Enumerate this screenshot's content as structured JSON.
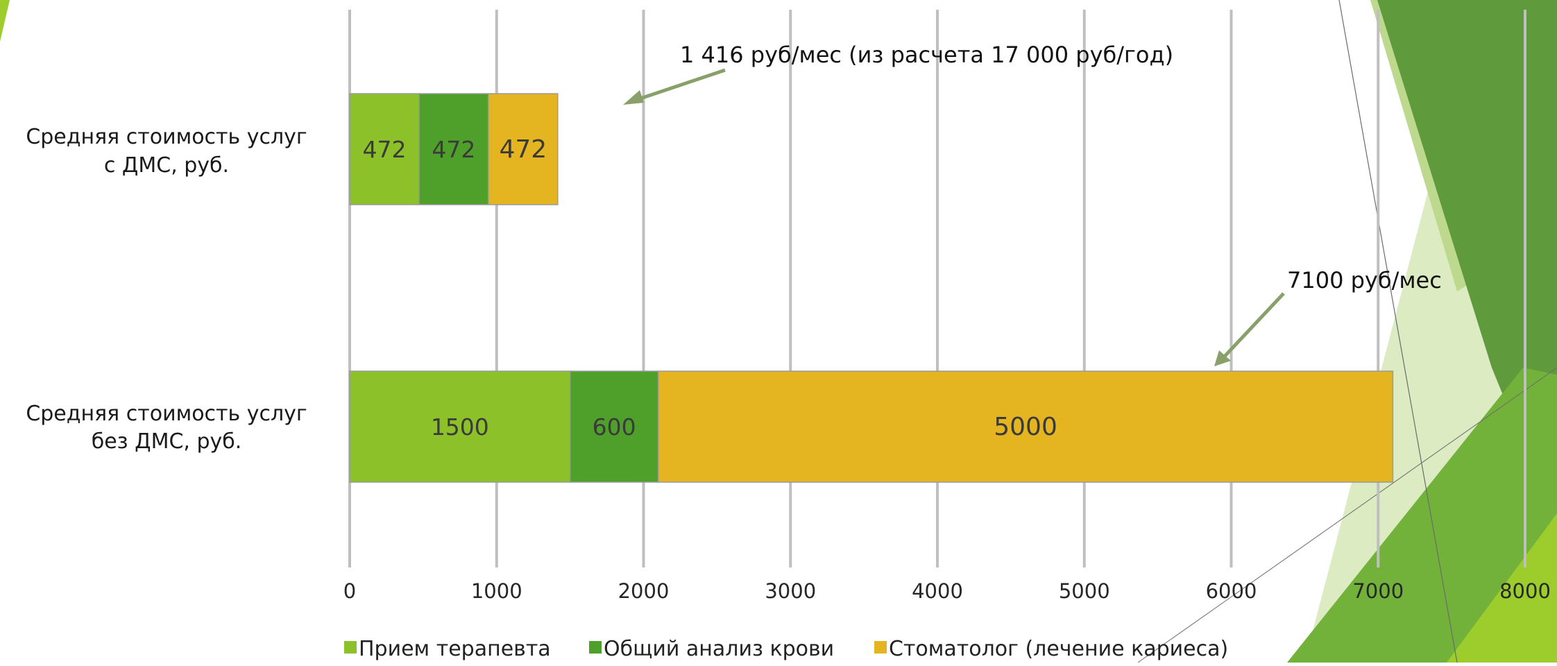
{
  "colors": {
    "therapist": "#8dc12a",
    "blood_test": "#4f9f2b",
    "dentist": "#e5b421",
    "grid": "#bfbfbf",
    "arrow": "#8aa06a",
    "deco_dark": "#5f9a3c",
    "deco_mid": "#72b23a",
    "deco_light": "#bcd98e",
    "deco_pale": "#dcebc2",
    "deco_lime": "#9ccd2c"
  },
  "chart_data": {
    "type": "bar",
    "orientation": "horizontal",
    "stacked": true,
    "categories": [
      "Средняя стоимость услуг с ДМС, руб.",
      "Средняя стоимость услуг без ДМС, руб."
    ],
    "category_lines": [
      [
        "Средняя стоимость услуг",
        "с ДМС, руб."
      ],
      [
        "Средняя стоимость услуг",
        "без ДМС, руб."
      ]
    ],
    "series": [
      {
        "name": "Прием терапевта",
        "values": [
          472,
          1500
        ],
        "labels": [
          "472",
          "1500"
        ]
      },
      {
        "name": "Общий анализ крови",
        "values": [
          472,
          600
        ],
        "labels": [
          "472",
          "600"
        ]
      },
      {
        "name": "Стоматолог (лечение кариеса)",
        "values": [
          472,
          5000
        ],
        "labels": [
          "472",
          "5000"
        ]
      }
    ],
    "xlim": [
      0,
      8000
    ],
    "xticks": [
      0,
      1000,
      2000,
      3000,
      4000,
      5000,
      6000,
      7000,
      8000
    ],
    "xtick_labels": [
      "0",
      "1000",
      "2000",
      "3000",
      "4000",
      "5000",
      "6000",
      "7000",
      "8000"
    ],
    "grid": true,
    "legend_position": "bottom",
    "annotations": [
      {
        "text": "1 416 руб/мес (из расчета 17 000 руб/год)",
        "points_to_category": 0
      },
      {
        "text": "7100 руб/мес",
        "points_to_category": 1
      }
    ]
  }
}
